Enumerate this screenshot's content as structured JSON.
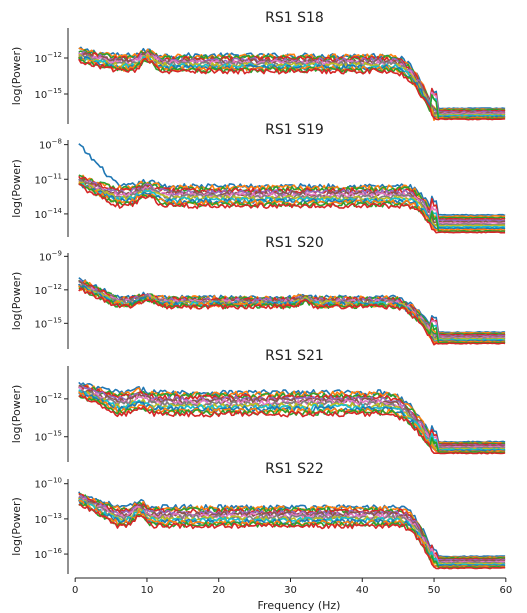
{
  "chart_data": {
    "type": "line",
    "xlabel": "Frequency (Hz)",
    "xlim": [
      -1,
      61
    ],
    "xticks": [
      0,
      10,
      20,
      30,
      40,
      50,
      60
    ],
    "palette": [
      "#1f77b4",
      "#ff7f0e",
      "#2ca02c",
      "#d62728",
      "#9467bd",
      "#8c564b",
      "#e377c2",
      "#7f7f7f",
      "#bcbd22",
      "#17becf"
    ],
    "panels": [
      {
        "title": "RS1 S18",
        "ylabel": "log(Power)",
        "ylim": [
          -17.5,
          -9.5
        ],
        "yticks": [
          {
            "exp": -12,
            "label_base": "10",
            "label_exp": "−12"
          },
          {
            "exp": -15,
            "label_base": "10",
            "label_exp": "−15"
          }
        ],
        "n_channels": 14,
        "band_high": -11.8,
        "band_low": -13.1,
        "low_freq_level": -11.3,
        "floor_high": -16.2,
        "floor_low": -17.1,
        "drop_start": 44,
        "peaks": [
          {
            "freq": 10,
            "height": 0.9,
            "width": 1.2
          }
        ],
        "spike_50": 1.4
      },
      {
        "title": "RS1 S19",
        "ylabel": "log(Power)",
        "ylim": [
          -16.0,
          -7.6
        ],
        "yticks": [
          {
            "exp": -8,
            "label_base": "10",
            "label_exp": "−8"
          },
          {
            "exp": -11,
            "label_base": "10",
            "label_exp": "−11"
          },
          {
            "exp": -14,
            "label_base": "10",
            "label_exp": "−14"
          }
        ],
        "n_channels": 14,
        "band_high": -11.6,
        "band_low": -13.3,
        "low_freq_level": -10.7,
        "floor_high": -14.1,
        "floor_low": -15.6,
        "drop_start": 46,
        "peaks": [
          {
            "freq": 10,
            "height": 0.8,
            "width": 1.6
          }
        ],
        "spike_50": 1.2,
        "outlier_start": -8.0
      },
      {
        "title": "RS1 S20",
        "ylabel": "log(Power)",
        "ylim": [
          -17.3,
          -8.7
        ],
        "yticks": [
          {
            "exp": -9,
            "label_base": "10",
            "label_exp": "−9"
          },
          {
            "exp": -12,
            "label_base": "10",
            "label_exp": "−12"
          },
          {
            "exp": -15,
            "label_base": "10",
            "label_exp": "−15"
          }
        ],
        "n_channels": 14,
        "band_high": -12.7,
        "band_low": -13.5,
        "low_freq_level": -11.0,
        "floor_high": -15.8,
        "floor_low": -16.8,
        "drop_start": 44,
        "peaks": [
          {
            "freq": 10,
            "height": 0.6,
            "width": 1.5
          },
          {
            "freq": 32,
            "height": 0.4,
            "width": 1.0
          }
        ],
        "spike_50": 1.3
      },
      {
        "title": "RS1 S21",
        "ylabel": "log(Power)",
        "ylim": [
          -17.0,
          -9.4
        ],
        "yticks": [
          {
            "exp": -12,
            "label_base": "10",
            "label_exp": "−12"
          },
          {
            "exp": -15,
            "label_base": "10",
            "label_exp": "−15"
          }
        ],
        "n_channels": 14,
        "band_high": -11.5,
        "band_low": -13.2,
        "low_freq_level": -10.8,
        "floor_high": -15.4,
        "floor_low": -16.3,
        "drop_start": 43,
        "peaks": [
          {
            "freq": 9,
            "height": 0.5,
            "width": 1.3
          }
        ],
        "spike_50": 0.8
      },
      {
        "title": "RS1 S22",
        "ylabel": "log(Power)",
        "ylim": [
          -17.7,
          -9.6
        ],
        "yticks": [
          {
            "exp": -10,
            "label_base": "10",
            "label_exp": "−10"
          },
          {
            "exp": -13,
            "label_base": "10",
            "label_exp": "−13"
          },
          {
            "exp": -16,
            "label_base": "10",
            "label_exp": "−16"
          }
        ],
        "n_channels": 14,
        "band_high": -12.0,
        "band_low": -13.6,
        "low_freq_level": -10.8,
        "floor_high": -16.2,
        "floor_low": -17.2,
        "drop_start": 45,
        "peaks": [
          {
            "freq": 9,
            "height": 0.9,
            "width": 1.0
          }
        ],
        "spike_50": 0.5
      }
    ]
  }
}
